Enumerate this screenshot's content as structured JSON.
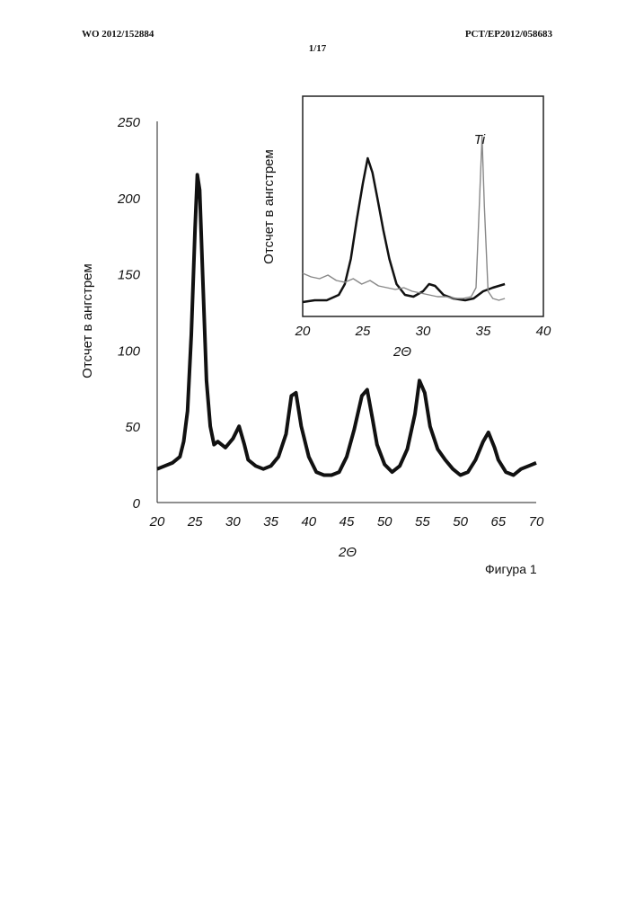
{
  "page": {
    "header_left": "WO 2012/152884",
    "header_right": "PCT/EP2012/058683",
    "page_number": "1/17",
    "figure_caption": "Фигура 1"
  },
  "chart_data": [
    {
      "type": "line",
      "xlabel": "2Θ",
      "ylabel": "Отсчет в ангстрем",
      "xlim": [
        20,
        70
      ],
      "ylim": [
        0,
        250
      ],
      "x_ticks": [
        "20",
        "25",
        "30",
        "35",
        "40",
        "45",
        "50",
        "55",
        "50",
        "65",
        "70"
      ],
      "y_ticks": [
        "0",
        "50",
        "100",
        "150",
        "200",
        "250"
      ],
      "grid": false,
      "series": [
        {
          "color": "#111111",
          "x": [
            20,
            21,
            22,
            23,
            23.5,
            24,
            24.5,
            25,
            25.3,
            25.6,
            26,
            26.5,
            27,
            27.5,
            28,
            29,
            30,
            30.8,
            31.5,
            32,
            33,
            34,
            35,
            36,
            37,
            37.7,
            38.3,
            39,
            40,
            41,
            42,
            43,
            44,
            45,
            46,
            47,
            47.7,
            48.4,
            49,
            50,
            51,
            52,
            53,
            54,
            54.6,
            55.3,
            56,
            57,
            58,
            59,
            60,
            61,
            62,
            63,
            63.7,
            64.5,
            65,
            66,
            67,
            68,
            69,
            70
          ],
          "y": [
            22,
            24,
            26,
            30,
            40,
            60,
            110,
            180,
            215,
            205,
            150,
            80,
            50,
            38,
            40,
            36,
            42,
            50,
            38,
            28,
            24,
            22,
            24,
            30,
            45,
            70,
            72,
            50,
            30,
            20,
            18,
            18,
            20,
            30,
            48,
            70,
            74,
            55,
            38,
            25,
            20,
            24,
            35,
            58,
            80,
            72,
            50,
            35,
            28,
            22,
            18,
            20,
            28,
            40,
            46,
            36,
            28,
            20,
            18,
            22,
            24,
            26
          ]
        }
      ]
    },
    {
      "type": "line",
      "xlabel": "2Θ",
      "ylabel": "Отсчет в ангстрем",
      "xlim": [
        20,
        40
      ],
      "x_ticks": [
        "20",
        "25",
        "30",
        "35",
        "40"
      ],
      "annotations": [
        "Ti"
      ],
      "series": [
        {
          "color": "#111111",
          "x": [
            20,
            21,
            22,
            23,
            23.5,
            24,
            24.5,
            25,
            25.4,
            25.8,
            26.2,
            26.7,
            27.2,
            27.8,
            28.5,
            29.2,
            30,
            30.5,
            31,
            31.7,
            32.5,
            33.5,
            34.2,
            34.6,
            35,
            35.4,
            35.8,
            36.3,
            36.8
          ],
          "y": [
            2,
            3,
            3,
            6,
            12,
            26,
            48,
            68,
            82,
            74,
            60,
            42,
            26,
            12,
            6,
            5,
            8,
            12,
            11,
            6,
            4,
            3,
            4,
            6,
            8,
            9,
            10,
            11,
            12
          ]
        },
        {
          "color": "#888888",
          "x": [
            20,
            20.7,
            21.4,
            22.1,
            22.8,
            23.5,
            24.2,
            24.9,
            25.6,
            26.3,
            27,
            27.7,
            28.4,
            29.1,
            29.8,
            30.5,
            31.2,
            31.9,
            32.6,
            33.3,
            34,
            34.4,
            34.7,
            34.9,
            35.1,
            35.4,
            35.8,
            36.3,
            36.8
          ],
          "y": [
            18,
            16,
            15,
            17,
            14,
            13,
            15,
            12,
            14,
            11,
            10,
            9,
            10,
            8,
            7,
            6,
            5,
            5,
            4,
            4,
            5,
            10,
            60,
            94,
            55,
            8,
            4,
            3,
            4
          ]
        }
      ]
    }
  ]
}
